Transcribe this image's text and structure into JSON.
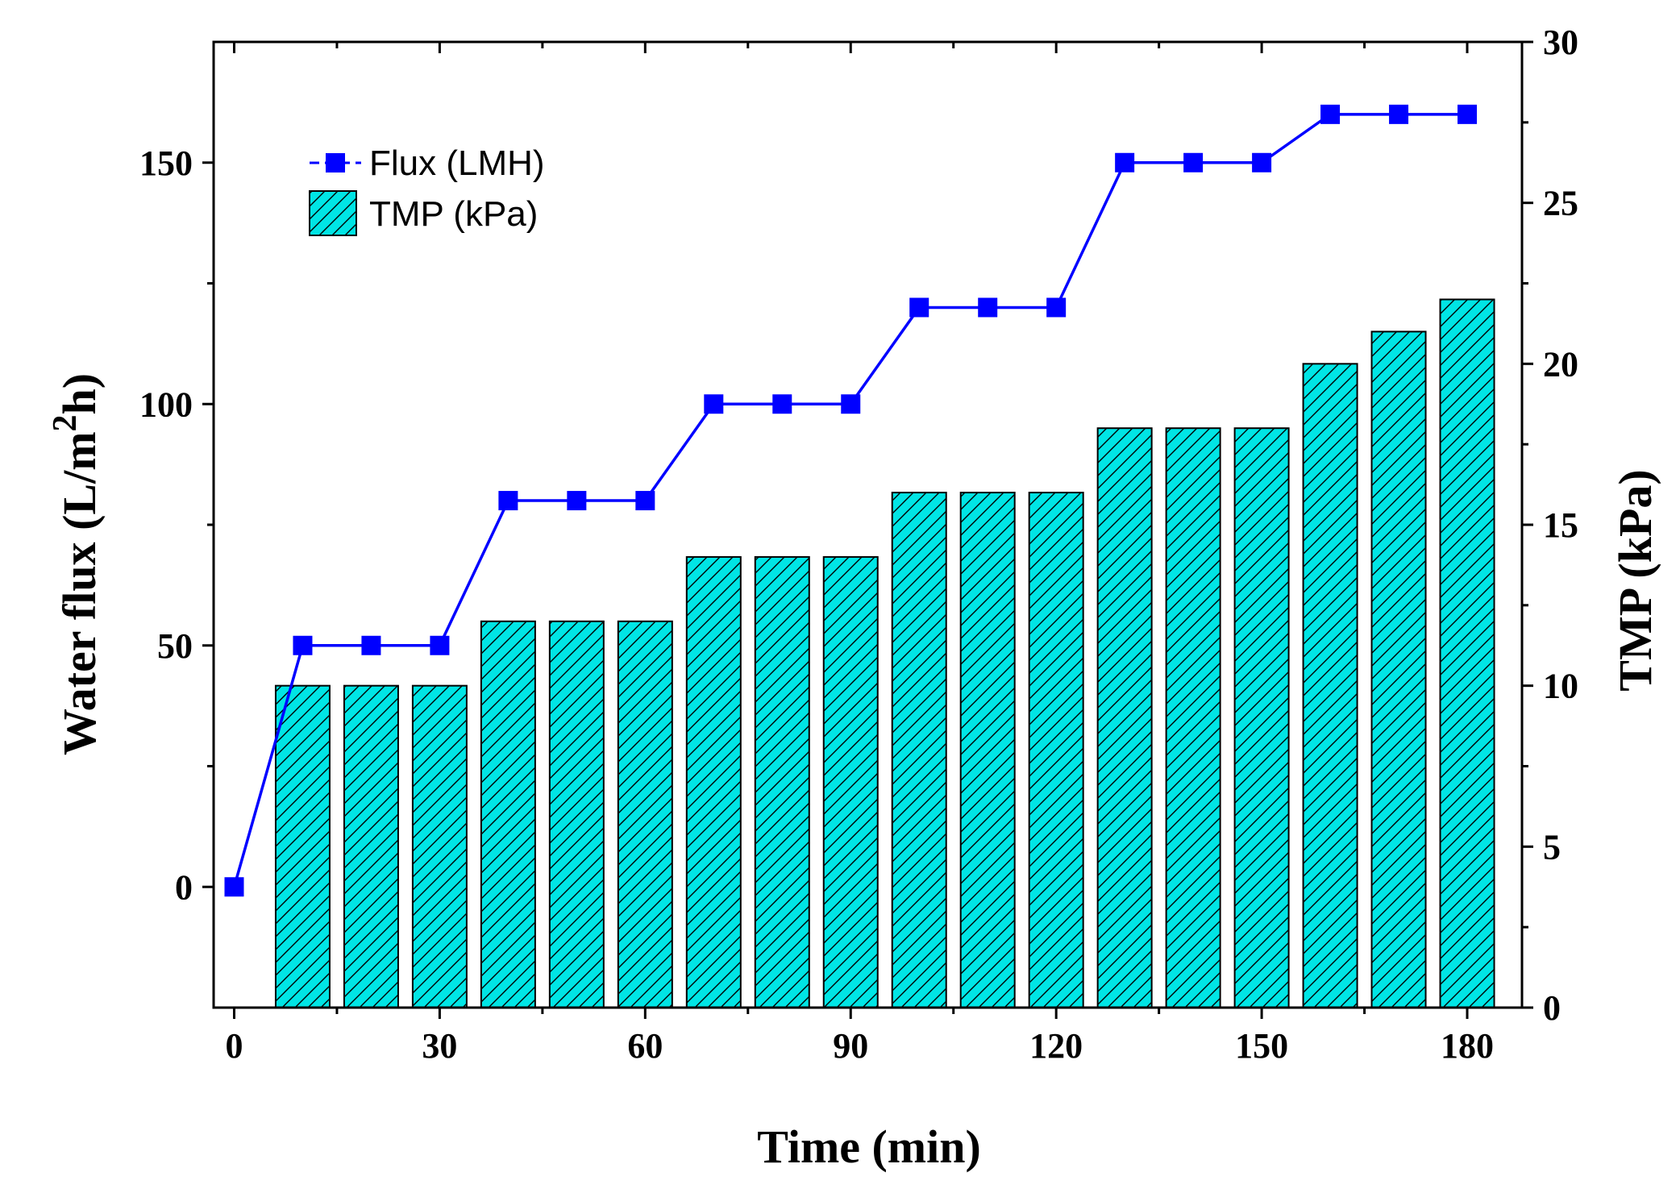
{
  "chart_data": {
    "type": "bar+line",
    "x": [
      0,
      10,
      20,
      30,
      40,
      50,
      60,
      70,
      80,
      90,
      100,
      110,
      120,
      130,
      140,
      150,
      160,
      170,
      180
    ],
    "xlabel": "Time (min)",
    "xlim": [
      -3,
      188
    ],
    "xticks": [
      0,
      30,
      60,
      90,
      120,
      150,
      180
    ],
    "left_axis": {
      "label_main": "Water flux (L/m",
      "label_sup": "2",
      "label_end": "h)",
      "ylim": [
        -25,
        175
      ],
      "ticks": [
        0,
        50,
        100,
        150
      ]
    },
    "right_axis": {
      "label": "TMP (kPa)",
      "ylim": [
        0,
        30
      ],
      "ticks": [
        0,
        5,
        10,
        15,
        20,
        25,
        30
      ]
    },
    "series": [
      {
        "name": "Flux (LMH)",
        "type": "line",
        "axis": "left",
        "color": "#0000ff",
        "marker": "square",
        "x": [
          0,
          10,
          20,
          30,
          40,
          50,
          60,
          70,
          80,
          90,
          100,
          110,
          120,
          130,
          140,
          150,
          160,
          170,
          180
        ],
        "values": [
          0,
          50,
          50,
          50,
          80,
          80,
          80,
          100,
          100,
          100,
          120,
          120,
          120,
          150,
          150,
          150,
          160,
          160,
          160
        ]
      },
      {
        "name": "TMP (kPa)",
        "type": "bar",
        "axis": "right",
        "color": "#00e5e5",
        "hatch": "diagonal",
        "x": [
          10,
          20,
          30,
          40,
          50,
          60,
          70,
          80,
          90,
          100,
          110,
          120,
          130,
          140,
          150,
          160,
          170,
          180
        ],
        "values": [
          10,
          10,
          10,
          12,
          12,
          12,
          14,
          14,
          14,
          16,
          16,
          16,
          18,
          18,
          18,
          20,
          21,
          22
        ]
      }
    ],
    "legend": {
      "position": "top-left",
      "entries": [
        "Flux (LMH)",
        "TMP (kPa)"
      ]
    }
  }
}
